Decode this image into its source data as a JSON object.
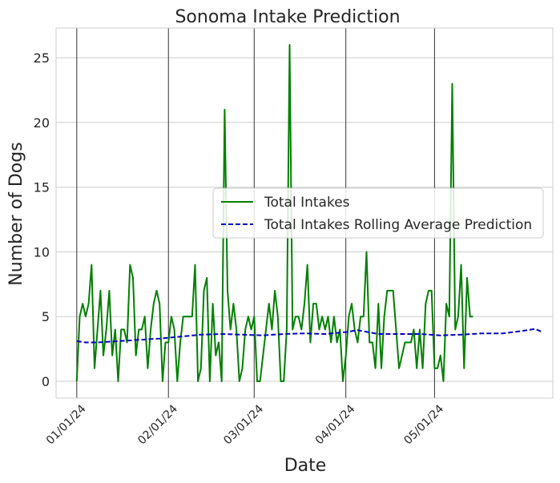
{
  "chart_data": {
    "type": "line",
    "title": "Sonoma Intake Prediction",
    "xlabel": "Date",
    "ylabel": "Number of Dogs",
    "x_tick_labels": [
      "01/01/24",
      "02/01/24",
      "03/01/24",
      "04/01/24",
      "05/01/24"
    ],
    "y_ticks": [
      0,
      5,
      10,
      15,
      20,
      25
    ],
    "ylim": [
      -1.3,
      27.3
    ],
    "xlim": [
      "2023-12-25",
      "2024-06-10"
    ],
    "grid": true,
    "legend_position": "center-right",
    "series": [
      {
        "name": "Total Intakes",
        "color": "#008000",
        "style": "solid",
        "start_date": "2024-01-01",
        "values": [
          0,
          5,
          6,
          5,
          6,
          9,
          1,
          4,
          7,
          2,
          4,
          7,
          2,
          4,
          0,
          4,
          4,
          3,
          9,
          8,
          2,
          4,
          4,
          5,
          1,
          4,
          6,
          7,
          6,
          0,
          3,
          3,
          5,
          4,
          0,
          3,
          5,
          5,
          5,
          5,
          9,
          0,
          1,
          7,
          8,
          0,
          6,
          2,
          3,
          0,
          21,
          7,
          4,
          6,
          4,
          0,
          1,
          4,
          5,
          4,
          5,
          0,
          0,
          2,
          4,
          6,
          4,
          7,
          5,
          0,
          0,
          4,
          26,
          4,
          5,
          5,
          4,
          6,
          9,
          3,
          6,
          6,
          4,
          5,
          4,
          5,
          3,
          5,
          3,
          4,
          0,
          2,
          5,
          6,
          4,
          3,
          5,
          5,
          10,
          3,
          3,
          1,
          6,
          1,
          5,
          7,
          7,
          7,
          4,
          1,
          2,
          3,
          3,
          3,
          4,
          1,
          4,
          1,
          6,
          7,
          7,
          1,
          1,
          2,
          0,
          6,
          5,
          23,
          4,
          5,
          9,
          1,
          8,
          5,
          5
        ]
      },
      {
        "name": "Total Intakes Rolling Average Prediction",
        "color": "#0000cc",
        "style": "dashed",
        "points": [
          [
            "2024-01-01",
            3.1
          ],
          [
            "2024-01-04",
            3.0
          ],
          [
            "2024-01-08",
            3.0
          ],
          [
            "2024-01-15",
            3.1
          ],
          [
            "2024-01-22",
            3.2
          ],
          [
            "2024-01-29",
            3.3
          ],
          [
            "2024-02-05",
            3.45
          ],
          [
            "2024-02-12",
            3.6
          ],
          [
            "2024-02-19",
            3.65
          ],
          [
            "2024-02-26",
            3.6
          ],
          [
            "2024-03-04",
            3.55
          ],
          [
            "2024-03-11",
            3.65
          ],
          [
            "2024-03-18",
            3.7
          ],
          [
            "2024-03-25",
            3.65
          ],
          [
            "2024-04-01",
            3.8
          ],
          [
            "2024-04-05",
            3.95
          ],
          [
            "2024-04-12",
            3.65
          ],
          [
            "2024-04-19",
            3.65
          ],
          [
            "2024-04-26",
            3.65
          ],
          [
            "2024-05-03",
            3.55
          ],
          [
            "2024-05-10",
            3.6
          ],
          [
            "2024-05-17",
            3.7
          ],
          [
            "2024-05-24",
            3.7
          ],
          [
            "2024-05-31",
            3.9
          ],
          [
            "2024-06-04",
            4.05
          ],
          [
            "2024-06-06",
            3.85
          ]
        ]
      }
    ]
  }
}
